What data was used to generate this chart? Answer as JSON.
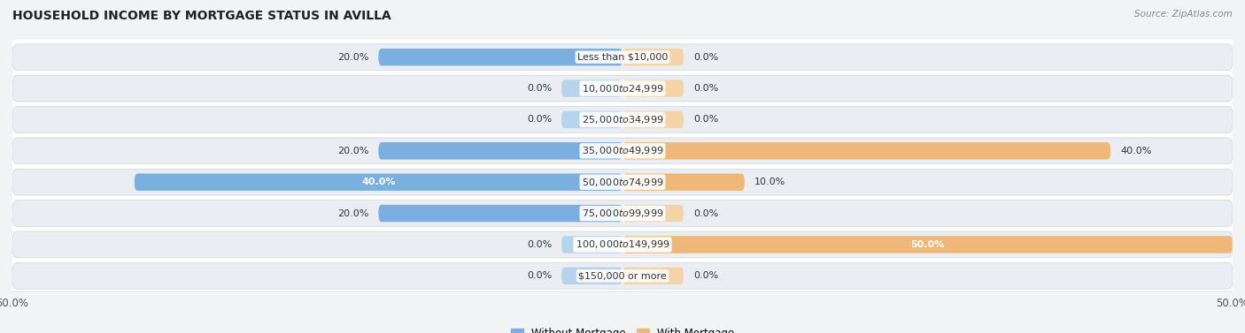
{
  "title": "HOUSEHOLD INCOME BY MORTGAGE STATUS IN AVILLA",
  "source": "Source: ZipAtlas.com",
  "categories": [
    "Less than $10,000",
    "$10,000 to $24,999",
    "$25,000 to $34,999",
    "$35,000 to $49,999",
    "$50,000 to $74,999",
    "$75,000 to $99,999",
    "$100,000 to $149,999",
    "$150,000 or more"
  ],
  "without_mortgage": [
    20.0,
    0.0,
    0.0,
    20.0,
    40.0,
    20.0,
    0.0,
    0.0
  ],
  "with_mortgage": [
    0.0,
    0.0,
    0.0,
    40.0,
    10.0,
    0.0,
    50.0,
    0.0
  ],
  "color_without": "#7aafe0",
  "color_with": "#f0b878",
  "color_without_light": "#b8d4ed",
  "color_with_light": "#f5d3a8",
  "xlim": 50.0,
  "min_bar_display": 5.0,
  "row_bg_color": "#e8eaed",
  "row_gap_color": "#f2f3f5",
  "title_fontsize": 10,
  "label_fontsize": 8,
  "tick_fontsize": 8.5,
  "source_fontsize": 7.5
}
